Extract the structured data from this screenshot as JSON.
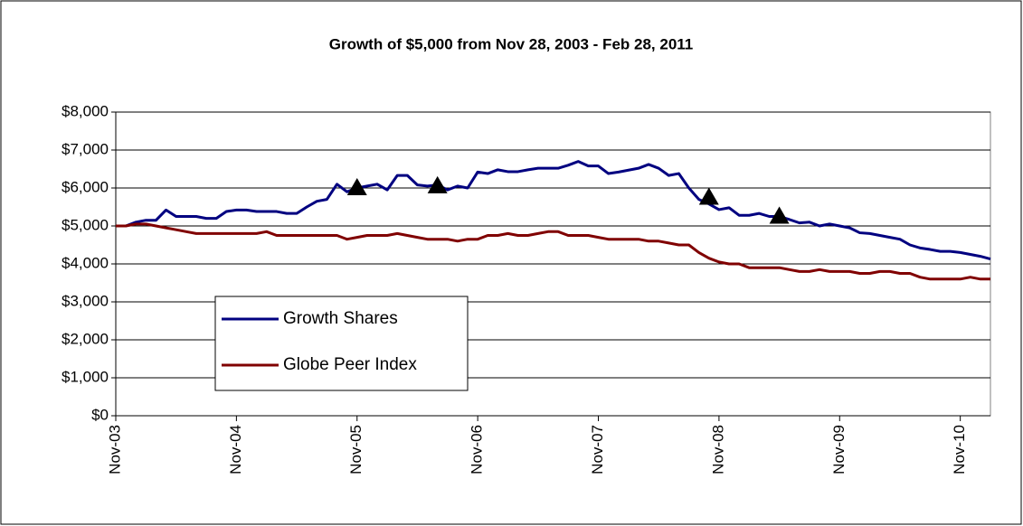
{
  "chart_data": {
    "type": "line",
    "title": "Growth of $5,000 from Nov 28, 2003 - Feb 28, 2011",
    "categories": [
      "Nov-03",
      null,
      null,
      null,
      null,
      null,
      null,
      null,
      null,
      null,
      null,
      null,
      "Nov-04",
      null,
      null,
      null,
      null,
      null,
      null,
      null,
      null,
      null,
      null,
      null,
      "Nov-05",
      null,
      null,
      null,
      null,
      null,
      null,
      null,
      null,
      null,
      null,
      null,
      "Nov-06",
      null,
      null,
      null,
      null,
      null,
      null,
      null,
      null,
      null,
      null,
      null,
      "Nov-07",
      null,
      null,
      null,
      null,
      null,
      null,
      null,
      null,
      null,
      null,
      null,
      "Nov-08",
      null,
      null,
      null,
      null,
      null,
      null,
      null,
      null,
      null,
      null,
      null,
      "Nov-09",
      null,
      null,
      null,
      null,
      null,
      null,
      null,
      null,
      null,
      null,
      null,
      "Nov-10",
      null,
      null,
      null
    ],
    "series": [
      {
        "name": "Growth Shares",
        "color": "#000080",
        "values": [
          5000,
          5000,
          5100,
          5150,
          5150,
          5420,
          5250,
          5250,
          5250,
          5200,
          5200,
          5380,
          5420,
          5420,
          5380,
          5380,
          5380,
          5330,
          5330,
          5500,
          5650,
          5700,
          6100,
          5900,
          6000,
          6050,
          6100,
          5950,
          6330,
          6330,
          6080,
          6050,
          6080,
          5950,
          6050,
          6000,
          6420,
          6380,
          6480,
          6430,
          6430,
          6480,
          6520,
          6520,
          6520,
          6600,
          6700,
          6580,
          6580,
          6380,
          6420,
          6470,
          6520,
          6620,
          6520,
          6330,
          6380,
          6000,
          5700,
          5580,
          5430,
          5480,
          5280,
          5280,
          5330,
          5250,
          5250,
          5170,
          5080,
          5100,
          5000,
          5050,
          5000,
          4950,
          4820,
          4800,
          4750,
          4700,
          4650,
          4500,
          4420,
          4380,
          4330,
          4330,
          4300,
          4250,
          4200,
          4130
        ]
      },
      {
        "name": "Globe Peer Index",
        "color": "#800000",
        "values": [
          5000,
          5000,
          5050,
          5050,
          5000,
          4950,
          4900,
          4850,
          4800,
          4800,
          4800,
          4800,
          4800,
          4800,
          4800,
          4850,
          4750,
          4750,
          4750,
          4750,
          4750,
          4750,
          4750,
          4650,
          4700,
          4750,
          4750,
          4750,
          4800,
          4750,
          4700,
          4650,
          4650,
          4650,
          4600,
          4650,
          4650,
          4750,
          4750,
          4800,
          4750,
          4750,
          4800,
          4850,
          4850,
          4750,
          4750,
          4750,
          4700,
          4650,
          4650,
          4650,
          4650,
          4600,
          4600,
          4550,
          4500,
          4500,
          4300,
          4150,
          4050,
          4000,
          4000,
          3900,
          3900,
          3900,
          3900,
          3850,
          3800,
          3800,
          3850,
          3800,
          3800,
          3800,
          3750,
          3750,
          3800,
          3800,
          3750,
          3750,
          3650,
          3600,
          3600,
          3600,
          3600,
          3650,
          3600,
          3600
        ]
      }
    ],
    "markers": {
      "color": "#000000",
      "values": [
        null,
        null,
        null,
        null,
        null,
        null,
        null,
        null,
        null,
        null,
        null,
        null,
        null,
        null,
        null,
        null,
        null,
        null,
        null,
        null,
        null,
        null,
        null,
        null,
        6000,
        null,
        null,
        null,
        null,
        null,
        null,
        null,
        6050,
        null,
        null,
        null,
        null,
        null,
        null,
        null,
        null,
        null,
        null,
        null,
        null,
        null,
        null,
        null,
        null,
        null,
        null,
        null,
        null,
        null,
        null,
        null,
        null,
        null,
        null,
        5750,
        null,
        null,
        null,
        null,
        null,
        null,
        5250,
        null,
        null,
        null,
        null,
        null,
        null,
        null,
        null,
        null,
        null,
        null,
        null,
        null,
        null,
        null,
        null,
        null,
        null,
        null,
        null,
        null
      ]
    },
    "ylim": [
      0,
      8000
    ],
    "yticks": [
      {
        "value": 0,
        "label": "$0"
      },
      {
        "value": 1000,
        "label": "$1,000"
      },
      {
        "value": 2000,
        "label": "$2,000"
      },
      {
        "value": 3000,
        "label": "$3,000"
      },
      {
        "value": 4000,
        "label": "$4,000"
      },
      {
        "value": 5000,
        "label": "$5,000"
      },
      {
        "value": 6000,
        "label": "$6,000"
      },
      {
        "value": 7000,
        "label": "$7,000"
      },
      {
        "value": 8000,
        "label": "$8,000"
      }
    ],
    "grid": true,
    "legend": "lower left"
  }
}
